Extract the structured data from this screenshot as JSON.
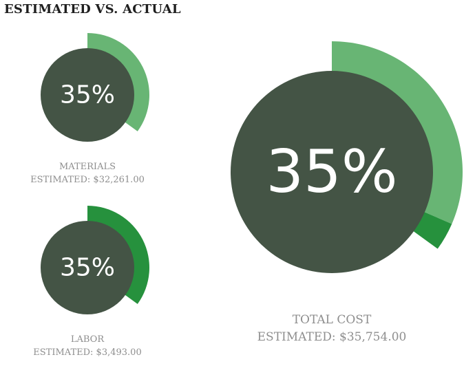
{
  "title": "ESTIMATED VS. ACTUAL",
  "colors": {
    "inner": "#445445",
    "light_ring": "#68b574",
    "dark_ring": "#26913d",
    "caption": "#8e8e8e"
  },
  "chart_data": {
    "type": "radial-progress",
    "title": "ESTIMATED VS. ACTUAL",
    "charts": [
      {
        "id": "materials",
        "label": "MATERIALS",
        "estimated_text": "ESTIMATED: $32,261.00",
        "percent_text": "35%",
        "segments": [
          {
            "name": "light",
            "start_fraction": 0.0,
            "end_fraction": 0.35
          }
        ]
      },
      {
        "id": "labor",
        "label": "LABOR",
        "estimated_text": "ESTIMATED: $3,493.00",
        "percent_text": "35%",
        "segments": [
          {
            "name": "dark",
            "start_fraction": 0.0,
            "end_fraction": 0.35
          }
        ]
      },
      {
        "id": "total",
        "label": "TOTAL COST",
        "estimated_text": "ESTIMATED: $35,754.00",
        "percent_text": "35%",
        "segments": [
          {
            "name": "light",
            "start_fraction": 0.0,
            "end_fraction": 0.315
          },
          {
            "name": "dark",
            "start_fraction": 0.315,
            "end_fraction": 0.35
          }
        ]
      }
    ]
  }
}
